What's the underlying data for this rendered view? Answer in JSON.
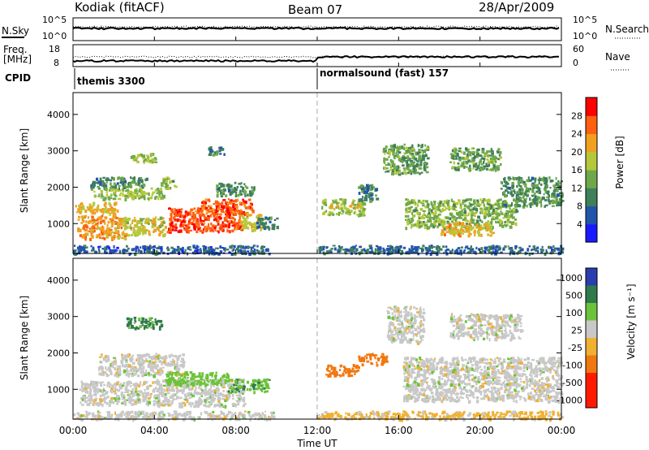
{
  "header": {
    "title": "Kodiak (fitACF)",
    "beam": "Beam 07",
    "date": "28/Apr/2009"
  },
  "top_panels": {
    "nsky_label": "N.Sky",
    "nsearch_label": "N.Search",
    "nsky_ticks": [
      "10^5",
      "10^0"
    ],
    "nsearch_ticks": [
      "10^5",
      "10^0"
    ],
    "freq_label": "Freq.",
    "freq_unit": "[MHz]",
    "freq_ticks": [
      "18",
      "8"
    ],
    "nave_label": "Nave",
    "nave_ticks": [
      "60",
      "0"
    ],
    "cpid_label": "CPID",
    "cpid_segments": [
      {
        "label": "themis 3300",
        "start_hour": 0
      },
      {
        "label": "normalsound (fast) 157",
        "start_hour": 12
      }
    ]
  },
  "chart_data": [
    {
      "type": "heatmap",
      "name": "power",
      "ylabel": "Slant Range [km]",
      "xlabel": "Time UT",
      "x_ticks": [
        "00:00",
        "04:00",
        "08:00",
        "12:00",
        "16:00",
        "20:00",
        "00:00"
      ],
      "xlim_hours": [
        0,
        24
      ],
      "ylim": [
        180,
        4600
      ],
      "y_ticks": [
        1000,
        2000,
        3000,
        4000
      ],
      "colorbar": {
        "label": "Power [dB]",
        "ticks": [
          "4",
          "8",
          "12",
          "16",
          "20",
          "24",
          "28"
        ],
        "range": [
          0,
          30
        ]
      },
      "regions": [
        {
          "t0": 0.0,
          "t1": 9.6,
          "r0": 200,
          "r1": 420,
          "v": 5
        },
        {
          "t0": 0.2,
          "t1": 2.6,
          "r0": 600,
          "r1": 1250,
          "v": 22
        },
        {
          "t0": 0.1,
          "t1": 2.2,
          "r0": 1300,
          "r1": 1600,
          "v": 20
        },
        {
          "t0": 2.4,
          "t1": 4.5,
          "r0": 700,
          "r1": 1200,
          "v": 18
        },
        {
          "t0": 1.0,
          "t1": 4.4,
          "r0": 1700,
          "r1": 2000,
          "v": 15
        },
        {
          "t0": 0.8,
          "t1": 3.6,
          "r0": 2000,
          "r1": 2300,
          "v": 9
        },
        {
          "t0": 4.3,
          "t1": 5.0,
          "r0": 2000,
          "r1": 2300,
          "v": 14
        },
        {
          "t0": 2.8,
          "t1": 4.2,
          "r0": 2700,
          "r1": 2950,
          "v": 15
        },
        {
          "t0": 4.6,
          "t1": 8.3,
          "r0": 800,
          "r1": 1450,
          "v": 27
        },
        {
          "t0": 6.2,
          "t1": 8.8,
          "r0": 1250,
          "r1": 1700,
          "v": 26
        },
        {
          "t0": 8.2,
          "t1": 9.2,
          "r0": 850,
          "r1": 1300,
          "v": 19
        },
        {
          "t0": 9.0,
          "t1": 10.0,
          "r0": 900,
          "r1": 1200,
          "v": 8
        },
        {
          "t0": 7.0,
          "t1": 8.9,
          "r0": 1800,
          "r1": 2150,
          "v": 10
        },
        {
          "t0": 6.6,
          "t1": 7.4,
          "r0": 2900,
          "r1": 3150,
          "v": 8
        },
        {
          "t0": 12.2,
          "t1": 14.3,
          "r0": 1250,
          "r1": 1700,
          "v": 16
        },
        {
          "t0": 14.0,
          "t1": 14.9,
          "r0": 1650,
          "r1": 2100,
          "v": 8
        },
        {
          "t0": 15.2,
          "t1": 17.4,
          "r0": 2400,
          "r1": 3200,
          "v": 12
        },
        {
          "t0": 16.3,
          "t1": 21.8,
          "r0": 900,
          "r1": 1700,
          "v": 14
        },
        {
          "t0": 18.0,
          "t1": 20.6,
          "r0": 700,
          "r1": 1050,
          "v": 20
        },
        {
          "t0": 18.5,
          "t1": 21.0,
          "r0": 2500,
          "r1": 3100,
          "v": 12
        },
        {
          "t0": 21.0,
          "t1": 24.0,
          "r0": 1500,
          "r1": 2300,
          "v": 10
        },
        {
          "t0": 12.0,
          "t1": 24.0,
          "r0": 200,
          "r1": 420,
          "v": 6
        }
      ]
    },
    {
      "type": "heatmap",
      "name": "velocity",
      "ylabel": "Slant Range [km]",
      "xlabel": "Time UT",
      "x_ticks": [
        "00:00",
        "04:00",
        "08:00",
        "12:00",
        "16:00",
        "20:00",
        "00:00"
      ],
      "xlim_hours": [
        0,
        24
      ],
      "ylim": [
        180,
        4600
      ],
      "y_ticks": [
        1000,
        2000,
        3000,
        4000
      ],
      "colorbar": {
        "label": "Velocity [m s⁻¹]",
        "ticks": [
          "1000",
          "500",
          "100",
          "25",
          "-25",
          "-100",
          "-500",
          "-1000"
        ]
      },
      "regions": [
        {
          "t0": 0.0,
          "t1": 10.0,
          "r0": 200,
          "r1": 420,
          "v": 0
        },
        {
          "t0": 0.3,
          "t1": 4.2,
          "r0": 600,
          "r1": 1250,
          "v": 0
        },
        {
          "t0": 1.2,
          "t1": 5.4,
          "r0": 1400,
          "r1": 2000,
          "v": 0
        },
        {
          "t0": 4.0,
          "t1": 8.4,
          "r0": 550,
          "r1": 1300,
          "v": 0
        },
        {
          "t0": 2.6,
          "t1": 4.3,
          "r0": 2700,
          "r1": 3000,
          "v": 120
        },
        {
          "t0": 4.5,
          "t1": 7.6,
          "r0": 1150,
          "r1": 1500,
          "v": 60
        },
        {
          "t0": 7.6,
          "t1": 9.6,
          "r0": 950,
          "r1": 1300,
          "v": 90
        },
        {
          "t0": 12.4,
          "t1": 14.0,
          "r0": 1400,
          "r1": 1700,
          "v": -200
        },
        {
          "t0": 14.0,
          "t1": 15.4,
          "r0": 1700,
          "r1": 2000,
          "v": -250
        },
        {
          "t0": 15.4,
          "t1": 17.2,
          "r0": 2300,
          "r1": 3300,
          "v": 0
        },
        {
          "t0": 16.2,
          "t1": 24.0,
          "r0": 700,
          "r1": 1900,
          "v": 0
        },
        {
          "t0": 18.5,
          "t1": 22.0,
          "r0": 2400,
          "r1": 3100,
          "v": 0
        },
        {
          "t0": 12.0,
          "t1": 24.0,
          "r0": 200,
          "r1": 420,
          "v": -40
        }
      ]
    }
  ]
}
